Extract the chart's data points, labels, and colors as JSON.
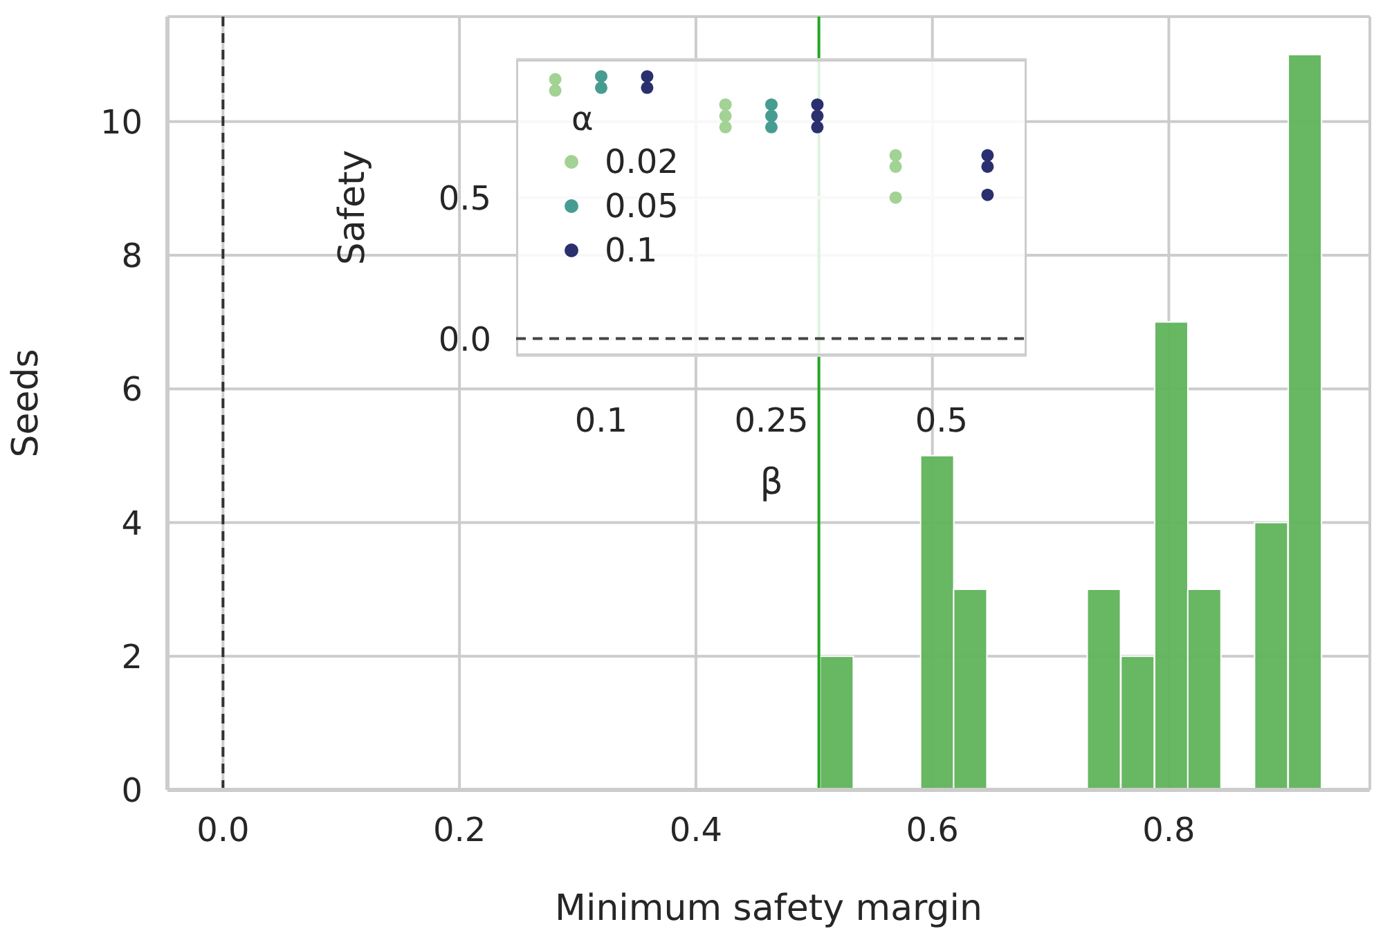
{
  "chart_data": [
    {
      "type": "histogram",
      "xlabel": "Minimum safety margin",
      "ylabel": "Seeds",
      "bins": [
        0.505,
        0.533,
        0.59,
        0.618,
        0.646,
        0.731,
        0.759,
        0.788,
        0.816,
        0.844,
        0.872,
        0.901,
        0.929
      ],
      "values": [
        2,
        0,
        5,
        3,
        0,
        3,
        2,
        7,
        3,
        0,
        4,
        11
      ],
      "color": "#5fb35b",
      "xlim": [
        -0.047,
        0.97
      ],
      "ylim": [
        0,
        11.57
      ],
      "xticks": [
        {
          "value": 0,
          "label": "0.0"
        },
        0.2,
        0.4,
        0.6,
        0.8
      ],
      "yticks": [
        0,
        2,
        4,
        6,
        8,
        10
      ],
      "grid": true,
      "ref_lines": [
        {
          "axis": "x",
          "value": 0,
          "color": "#333333",
          "line_style": "dashed"
        },
        {
          "axis": "x",
          "value": 0.504,
          "color": "#22a622",
          "line_style": "solid"
        }
      ]
    },
    {
      "type": "scatter",
      "xlabel": "β",
      "ylabel": "Safety",
      "legend_title": "α",
      "legend": "left",
      "marker": "circle",
      "grid": "y",
      "categories": [
        "0.1",
        "0.25",
        "0.5"
      ],
      "ylim": [
        -0.06,
        0.99
      ],
      "yticks": [
        {
          "value": 0,
          "label": "0.0"
        },
        0.5
      ],
      "ref_lines": [
        {
          "axis": "y",
          "value": 0,
          "color": "#444444",
          "line_style": "dashed"
        }
      ],
      "series": [
        {
          "name": "0.02",
          "color": "#a2d294",
          "x": [
            "0.1",
            "0.1",
            "0.25",
            "0.25",
            "0.25",
            "0.5",
            "0.5",
            "0.5"
          ],
          "values": [
            0.88,
            0.92,
            0.83,
            0.79,
            0.75,
            0.65,
            0.61,
            0.5
          ]
        },
        {
          "name": "0.05",
          "color": "#479c92",
          "x": [
            "0.1",
            "0.1",
            "0.25",
            "0.25",
            "0.25"
          ],
          "values": [
            0.89,
            0.93,
            0.83,
            0.79,
            0.75
          ]
        },
        {
          "name": "0.1",
          "color": "#2a2f6e",
          "x": [
            "0.1",
            "0.1",
            "0.25",
            "0.25",
            "0.25",
            "0.5",
            "0.5",
            "0.5"
          ],
          "values": [
            0.89,
            0.93,
            0.83,
            0.79,
            0.75,
            0.65,
            0.61,
            0.51
          ]
        }
      ]
    }
  ]
}
